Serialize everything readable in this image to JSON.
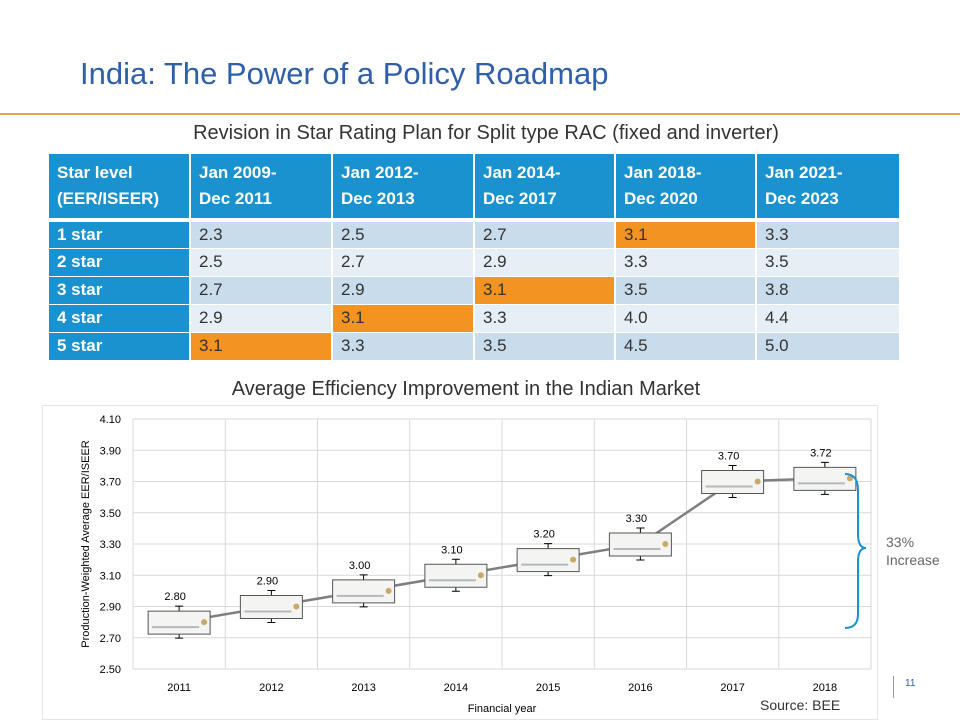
{
  "title": "India: The Power of a Policy Roadmap",
  "table_caption": "Revision in Star Rating Plan for Split type RAC (fixed and inverter)",
  "table": {
    "headers": [
      [
        "Star level",
        "(EER/ISEER)"
      ],
      [
        "Jan 2009-",
        "Dec 2011"
      ],
      [
        "Jan 2012-",
        "Dec 2013"
      ],
      [
        "Jan 2014-",
        "Dec 2017"
      ],
      [
        "Jan 2018-",
        "Dec 2020"
      ],
      [
        "Jan 2021-",
        "Dec 2023"
      ]
    ],
    "rows": [
      {
        "label": "1 star",
        "values": [
          "2.3",
          "2.5",
          "2.7",
          "3.1",
          "3.3"
        ],
        "highlight": 3
      },
      {
        "label": "2 star",
        "values": [
          "2.5",
          "2.7",
          "2.9",
          "3.3",
          "3.5"
        ],
        "highlight": -1
      },
      {
        "label": "3 star",
        "values": [
          "2.7",
          "2.9",
          "3.1",
          "3.5",
          "3.8"
        ],
        "highlight": 2
      },
      {
        "label": "4 star",
        "values": [
          "2.9",
          "3.1",
          "3.3",
          "4.0",
          "4.4"
        ],
        "highlight": 1
      },
      {
        "label": "5 star",
        "values": [
          "3.1",
          "3.3",
          "3.5",
          "4.5",
          "5.0"
        ],
        "highlight": 0
      }
    ],
    "highlight_color": "#f39322",
    "header_color": "#1a92cf"
  },
  "chart_caption": "Average Efficiency Improvement in the Indian Market",
  "chart_data": {
    "type": "line",
    "categories": [
      "2011",
      "2012",
      "2013",
      "2014",
      "2015",
      "2016",
      "2017",
      "2018"
    ],
    "values": [
      2.8,
      2.9,
      3.0,
      3.1,
      3.2,
      3.3,
      3.7,
      3.72
    ],
    "data_labels": [
      "2.80",
      "2.90",
      "3.00",
      "3.10",
      "3.20",
      "3.30",
      "3.70",
      "3.72"
    ],
    "yticks": [
      "2.50",
      "2.70",
      "2.90",
      "3.10",
      "3.30",
      "3.50",
      "3.70",
      "3.90",
      "4.10"
    ],
    "ylim": [
      2.5,
      4.1
    ],
    "xlabel": "Financial year",
    "ylabel": "Production-Weighted Average EER/ISEER",
    "grid": true,
    "line_color": "#7f7f7f",
    "brace_color": "#1a92cf",
    "annotation": [
      "33%",
      "Increase"
    ]
  },
  "source": "Source: BEE",
  "page_number": "11"
}
